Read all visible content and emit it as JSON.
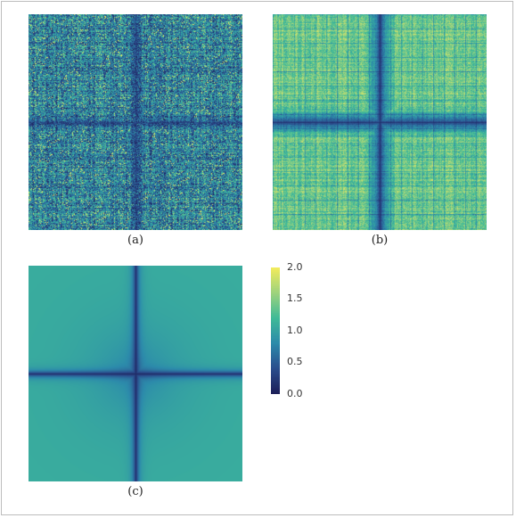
{
  "panels": [
    {
      "id": "a",
      "caption": "(a)"
    },
    {
      "id": "b",
      "caption": "(b)"
    },
    {
      "id": "c",
      "caption": "(c)"
    }
  ],
  "colorbar": {
    "ticks": [
      "2.0",
      "1.5",
      "1.0",
      "0.5",
      "0.0"
    ],
    "range": [
      0,
      2
    ],
    "colormap": [
      "#1d1f59",
      "#2b4f8e",
      "#2c8bab",
      "#3fbb98",
      "#9ed37e",
      "#f2ec5d"
    ]
  }
}
